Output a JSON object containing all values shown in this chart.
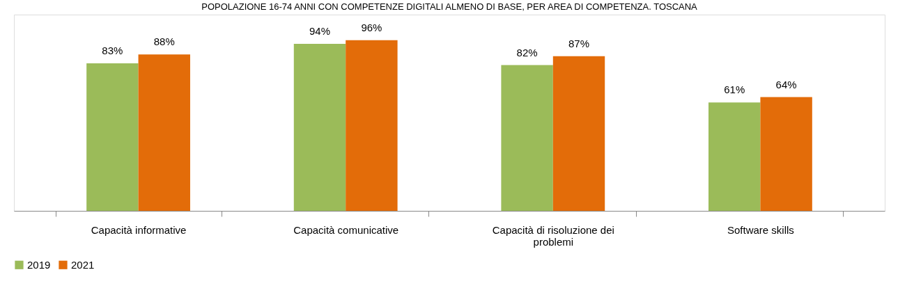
{
  "chart_data": {
    "type": "bar",
    "title": "POPOLAZIONE 16-74 ANNI CON COMPETENZE DIGITALI ALMENO DI BASE, PER AREA DI COMPETENZA. TOSCANA",
    "categories": [
      "Capacità informative",
      "Capacità comunicative",
      "Capacità di risoluzione dei problemi",
      "Software skills"
    ],
    "series": [
      {
        "name": "2019",
        "color": "#9bbb59",
        "values": [
          83,
          94,
          82,
          61
        ],
        "value_labels": [
          "83%",
          "94%",
          "82%",
          "61%"
        ]
      },
      {
        "name": "2021",
        "color": "#e36c09",
        "values": [
          88,
          96,
          87,
          64
        ],
        "value_labels": [
          "88%",
          "96%",
          "87%",
          "64%"
        ]
      }
    ],
    "legend": "bottom",
    "grid": false
  }
}
